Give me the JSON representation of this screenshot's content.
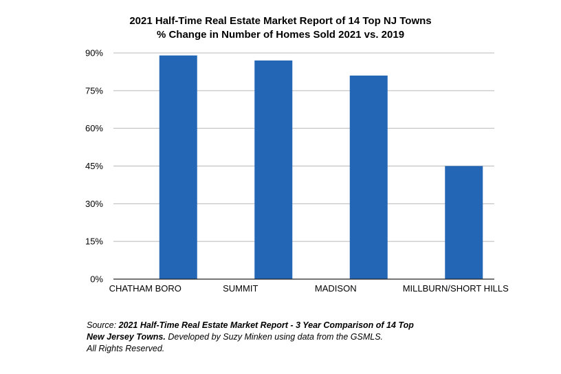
{
  "chart_data": {
    "type": "bar",
    "title_line1": "2021 Half-Time Real Estate Market Report of 14 Top NJ Towns",
    "title_line2": "% Change in Number of Homes Sold 2021 vs. 2019",
    "categories": [
      "CHATHAM BORO",
      "SUMMIT",
      "MADISON",
      "MILLBURN/SHORT HILLS"
    ],
    "values": [
      89,
      87,
      81,
      45
    ],
    "y_ticks": [
      0,
      15,
      30,
      45,
      60,
      75,
      90
    ],
    "y_tick_suffix": "%",
    "ylim": [
      0,
      90
    ],
    "grid": true,
    "bar_color": "#2266b5",
    "xlabel": "",
    "ylabel": ""
  },
  "source": {
    "prefix": "Source: ",
    "bold_line1": "2021 Half-Time Real Estate Market Report - 3 Year Comparison of 14 Top",
    "bold_line2": "New Jersey Towns.",
    "rest_line2": " Developed by Suzy Minken using data from the GSMLS.",
    "line3": "All Rights Reserved."
  }
}
